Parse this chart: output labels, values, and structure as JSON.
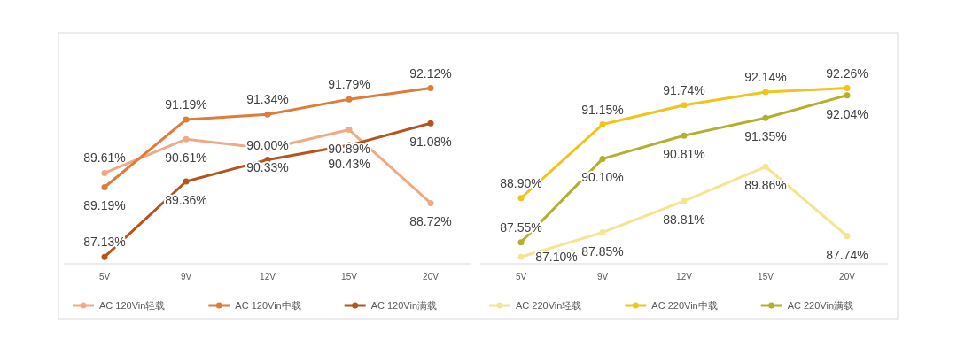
{
  "chart_data": [
    {
      "type": "line",
      "categories": [
        "5V",
        "9V",
        "12V",
        "15V",
        "20V"
      ],
      "marker": "circle",
      "legend": "bottom",
      "series": [
        {
          "name": "AC 120Vin轻载",
          "color": "#f0a982",
          "values": [
            89.61,
            90.61,
            90.33,
            90.89,
            88.72
          ],
          "value_labels": [
            "89.61%",
            "90.61%",
            "90.33%",
            "90.89%",
            "88.72%"
          ]
        },
        {
          "name": "AC 120Vin中载",
          "color": "#e07b39",
          "values": [
            89.19,
            91.19,
            91.34,
            91.79,
            92.12
          ],
          "value_labels": [
            "89.19%",
            "91.19%",
            "91.34%",
            "91.79%",
            "92.12%"
          ]
        },
        {
          "name": "AC 120Vin满载",
          "color": "#b5541b",
          "values": [
            87.13,
            89.36,
            90.0,
            90.43,
            91.08
          ],
          "value_labels": [
            "87.13%",
            "89.36%",
            "90.00%",
            "90.43%",
            "91.08%"
          ]
        }
      ]
    },
    {
      "type": "line",
      "categories": [
        "5V",
        "9V",
        "12V",
        "15V",
        "20V"
      ],
      "marker": "circle",
      "legend": "bottom",
      "series": [
        {
          "name": "AC 220Vin轻载",
          "color": "#f3e592",
          "values": [
            87.1,
            87.85,
            88.81,
            89.86,
            87.74
          ],
          "value_labels": [
            "87.10%",
            "87.85%",
            "88.81%",
            "89.86%",
            "87.74%"
          ]
        },
        {
          "name": "AC 220Vin中载",
          "color": "#f0c419",
          "values": [
            88.9,
            91.15,
            91.74,
            92.14,
            92.26
          ],
          "value_labels": [
            "88.90%",
            "91.15%",
            "91.74%",
            "92.14%",
            "92.26%"
          ]
        },
        {
          "name": "AC 220Vin满载",
          "color": "#b3b02e",
          "values": [
            87.55,
            90.1,
            90.81,
            91.35,
            92.04
          ],
          "value_labels": [
            "87.55%",
            "90.10%",
            "90.81%",
            "91.35%",
            "92.04%"
          ]
        }
      ]
    }
  ]
}
